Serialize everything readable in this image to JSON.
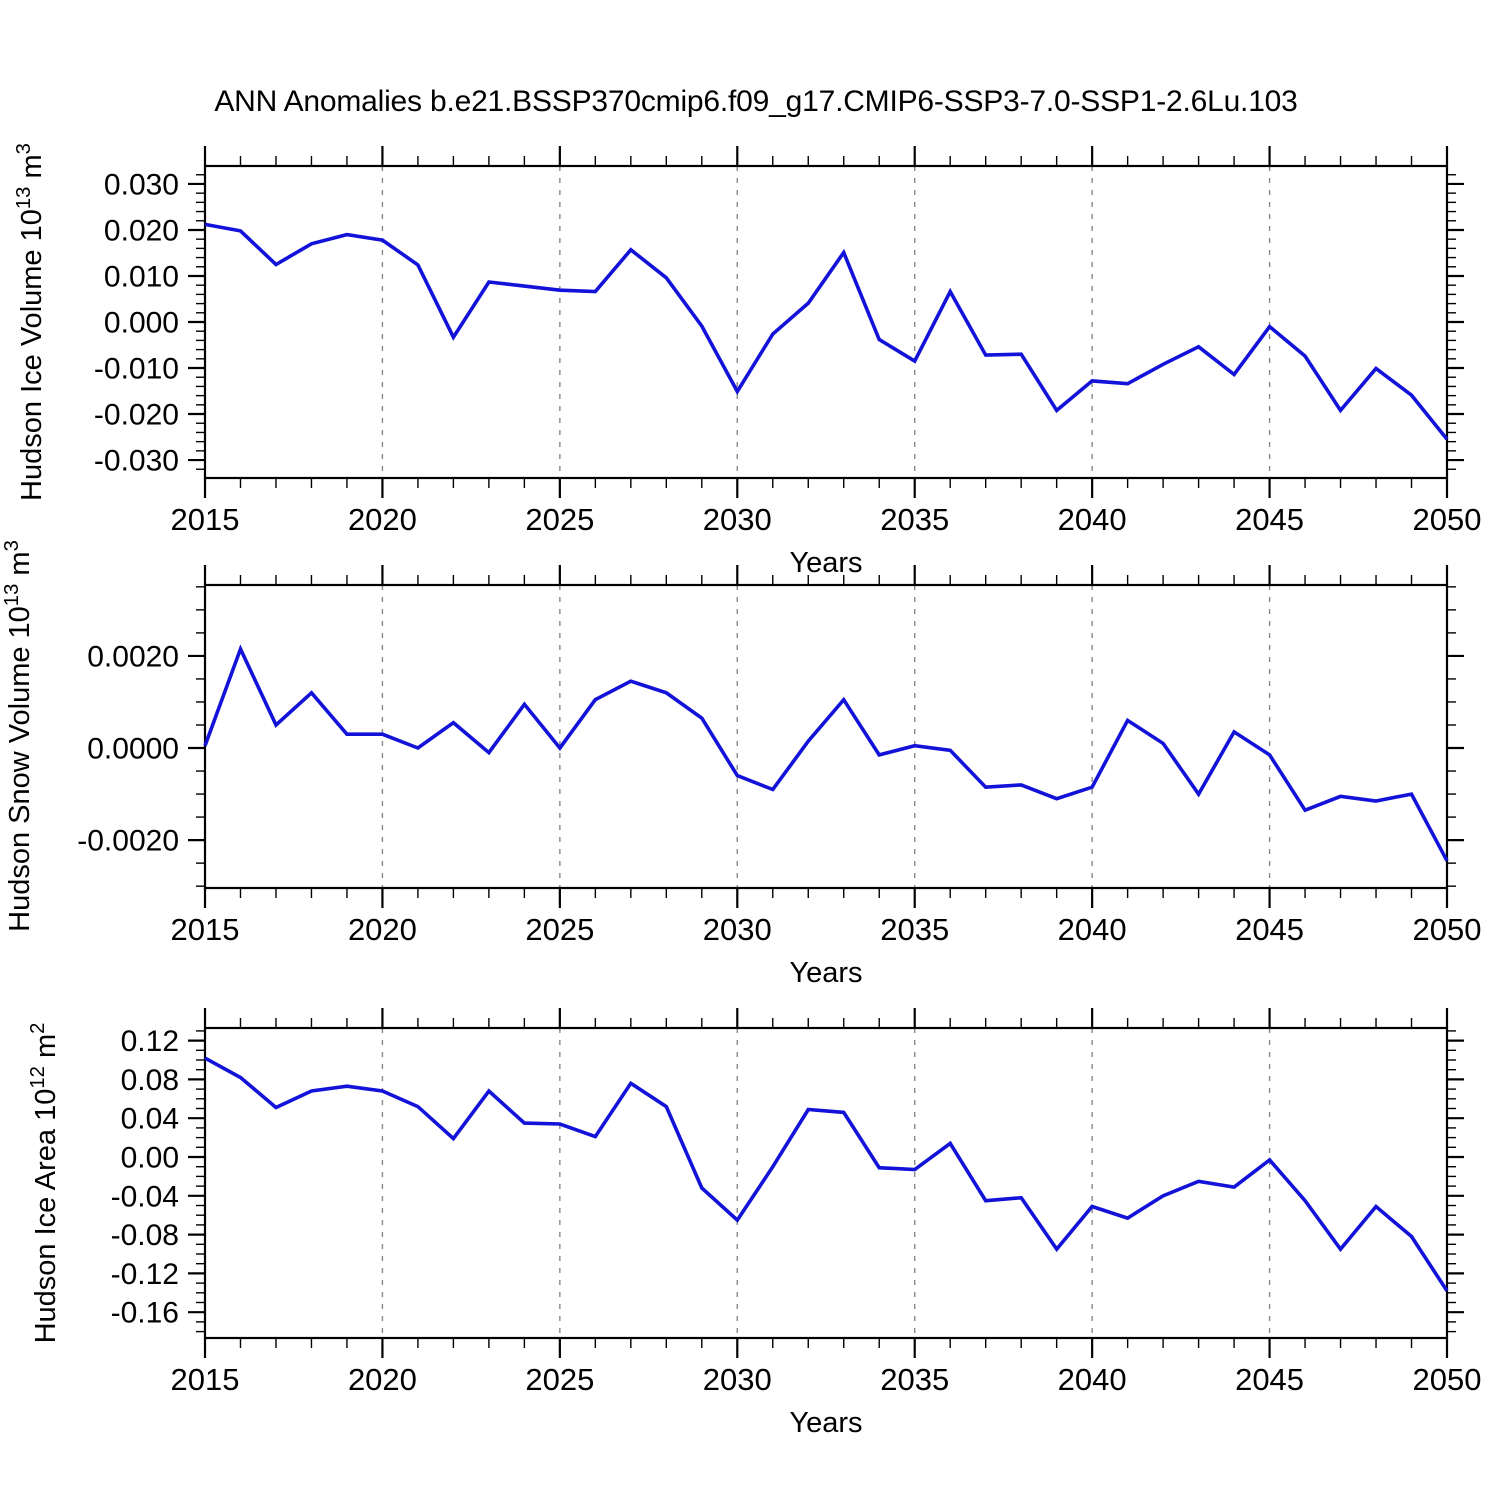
{
  "chart_title": "ANN Anomalies b.e21.BSSP370cmip6.f09_g17.CMIP6-SSP3-7.0-SSP1-2.6Lu.103",
  "colors": {
    "line": "#1212d9",
    "grid": "#888888",
    "axis": "#000000",
    "background": "#ffffff"
  },
  "chart_data": [
    {
      "type": "line",
      "series_name": "Hudson Ice Volume anomaly",
      "ylabel_main": "Hudson Ice Volume 10",
      "ylabel_power": "13",
      "ylabel_unit": " m",
      "ylabel_unit_power": "3",
      "xlabel": "Years",
      "xlim": [
        2015,
        2050
      ],
      "xticks": [
        2015,
        2020,
        2025,
        2030,
        2035,
        2040,
        2045,
        2050
      ],
      "xtick_labels": [
        "2015",
        "2020",
        "2025",
        "2030",
        "2035",
        "2040",
        "2045",
        "2050"
      ],
      "x_minor_step": 1,
      "grid_years": [
        2020,
        2025,
        2030,
        2035,
        2040,
        2045
      ],
      "grid_style": "vertical-dashed",
      "ylim": [
        -0.0339,
        0.0339
      ],
      "yticks": [
        0.03,
        0.02,
        0.01,
        0.0,
        -0.01,
        -0.02,
        -0.03
      ],
      "ytick_labels": [
        "0.030",
        "0.020",
        "0.010",
        "0.000",
        "-0.010",
        "-0.020",
        "-0.030"
      ],
      "y_minor_step": 0.002,
      "x": [
        2015,
        2016,
        2017,
        2018,
        2019,
        2020,
        2021,
        2022,
        2023,
        2024,
        2025,
        2026,
        2027,
        2028,
        2029,
        2030,
        2031,
        2032,
        2033,
        2034,
        2035,
        2036,
        2037,
        2038,
        2039,
        2040,
        2041,
        2042,
        2043,
        2044,
        2045,
        2046,
        2047,
        2048,
        2049,
        2050
      ],
      "values": [
        0.0212,
        0.0198,
        0.0125,
        0.017,
        0.019,
        0.0178,
        0.0124,
        -0.0033,
        0.0087,
        0.0078,
        0.0069,
        0.0066,
        0.0157,
        0.0096,
        -0.0009,
        -0.0151,
        -0.0026,
        0.0041,
        0.0151,
        -0.0038,
        -0.0085,
        0.0066,
        -0.0072,
        -0.007,
        -0.0192,
        -0.0128,
        -0.0134,
        -0.0092,
        -0.0054,
        -0.0114,
        -0.001,
        -0.0074,
        -0.0192,
        -0.0101,
        -0.0159,
        -0.0255
      ]
    },
    {
      "type": "line",
      "series_name": "Hudson Snow Volume anomaly",
      "ylabel_main": "Hudson Snow Volume 10",
      "ylabel_power": "13",
      "ylabel_unit": " m",
      "ylabel_unit_power": "3",
      "xlabel": "Years",
      "xlim": [
        2015,
        2050
      ],
      "xticks": [
        2015,
        2020,
        2025,
        2030,
        2035,
        2040,
        2045,
        2050
      ],
      "xtick_labels": [
        "2015",
        "2020",
        "2025",
        "2030",
        "2035",
        "2040",
        "2045",
        "2050"
      ],
      "x_minor_step": 1,
      "grid_years": [
        2020,
        2025,
        2030,
        2035,
        2040,
        2045
      ],
      "grid_style": "vertical-dashed",
      "ylim": [
        -0.00304,
        0.00354
      ],
      "yticks": [
        0.002,
        0.0,
        -0.002
      ],
      "ytick_labels": [
        "0.0020",
        "0.0000",
        "-0.0020"
      ],
      "y_minor_step": 0.0005,
      "x": [
        2015,
        2016,
        2017,
        2018,
        2019,
        2020,
        2021,
        2022,
        2023,
        2024,
        2025,
        2026,
        2027,
        2028,
        2029,
        2030,
        2031,
        2032,
        2033,
        2034,
        2035,
        2036,
        2037,
        2038,
        2039,
        2040,
        2041,
        2042,
        2043,
        2044,
        2045,
        2046,
        2047,
        2048,
        2049,
        2050
      ],
      "values": [
        5e-05,
        0.00215,
        0.0005,
        0.0012,
        0.0003,
        0.0003,
        0.0,
        0.00055,
        -0.0001,
        0.00095,
        0.0,
        0.00105,
        0.00145,
        0.0012,
        0.00065,
        -0.0006,
        -0.0009,
        0.00015,
        0.00105,
        -0.00015,
        5e-05,
        -5e-05,
        -0.00085,
        -0.0008,
        -0.0011,
        -0.00085,
        0.0006,
        0.0001,
        -0.001,
        0.00035,
        -0.00015,
        -0.00135,
        -0.00105,
        -0.00115,
        -0.001,
        -0.00245
      ]
    },
    {
      "type": "line",
      "series_name": "Hudson Ice Area anomaly",
      "ylabel_main": "Hudson Ice Area 10",
      "ylabel_power": "12",
      "ylabel_unit": " m",
      "ylabel_unit_power": "2",
      "xlabel": "Years",
      "xlim": [
        2015,
        2050
      ],
      "xticks": [
        2015,
        2020,
        2025,
        2030,
        2035,
        2040,
        2045,
        2050
      ],
      "xtick_labels": [
        "2015",
        "2020",
        "2025",
        "2030",
        "2035",
        "2040",
        "2045",
        "2050"
      ],
      "x_minor_step": 1,
      "grid_years": [
        2020,
        2025,
        2030,
        2035,
        2040,
        2045
      ],
      "grid_style": "vertical-dashed",
      "ylim": [
        -0.1866,
        0.133
      ],
      "yticks": [
        0.12,
        0.08,
        0.04,
        0.0,
        -0.04,
        -0.08,
        -0.12,
        -0.16
      ],
      "ytick_labels": [
        "0.12",
        "0.08",
        "0.04",
        "0.00",
        "-0.04",
        "-0.08",
        "-0.12",
        "-0.16"
      ],
      "y_minor_step": 0.01,
      "x": [
        2015,
        2016,
        2017,
        2018,
        2019,
        2020,
        2021,
        2022,
        2023,
        2024,
        2025,
        2026,
        2027,
        2028,
        2029,
        2030,
        2031,
        2032,
        2033,
        2034,
        2035,
        2036,
        2037,
        2038,
        2039,
        2040,
        2041,
        2042,
        2043,
        2044,
        2045,
        2046,
        2047,
        2048,
        2049,
        2050
      ],
      "values": [
        0.102,
        0.082,
        0.051,
        0.068,
        0.073,
        0.068,
        0.052,
        0.019,
        0.068,
        0.035,
        0.034,
        0.021,
        0.076,
        0.052,
        -0.032,
        -0.065,
        -0.01,
        0.049,
        0.046,
        -0.011,
        -0.013,
        0.014,
        -0.045,
        -0.042,
        -0.095,
        -0.051,
        -0.063,
        -0.04,
        -0.025,
        -0.031,
        -0.003,
        -0.045,
        -0.095,
        -0.051,
        -0.082,
        -0.138
      ]
    }
  ]
}
